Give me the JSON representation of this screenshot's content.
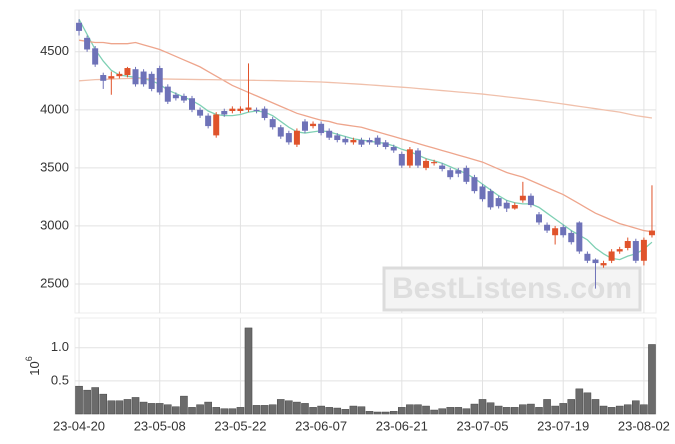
{
  "chart_data": [
    {
      "type": "candlestick",
      "categories": [
        "23-04-20",
        null,
        null,
        null,
        null,
        null,
        null,
        null,
        null,
        null,
        "23-05-08",
        null,
        null,
        null,
        null,
        null,
        null,
        null,
        null,
        null,
        "23-05-22",
        null,
        null,
        null,
        null,
        null,
        null,
        null,
        null,
        null,
        "23-06-07",
        null,
        null,
        null,
        null,
        null,
        null,
        null,
        null,
        null,
        "23-06-21",
        null,
        null,
        null,
        null,
        null,
        null,
        null,
        null,
        null,
        "23-07-05",
        null,
        null,
        null,
        null,
        null,
        null,
        null,
        null,
        null,
        "23-07-19",
        null,
        null,
        null,
        null,
        null,
        null,
        null,
        null,
        null,
        "23-08-02",
        null
      ],
      "open": [
        4750,
        4620,
        4530,
        4300,
        4270,
        4290,
        4300,
        4350,
        4330,
        4310,
        4360,
        4200,
        4130,
        4120,
        4100,
        4000,
        3950,
        3780,
        3990,
        3990,
        3990,
        4000,
        4000,
        4010,
        3920,
        3850,
        3800,
        3700,
        3900,
        3860,
        3880,
        3820,
        3780,
        3750,
        3720,
        3740,
        3740,
        3760,
        3720,
        3680,
        3620,
        3520,
        3650,
        3500,
        3540,
        3520,
        3480,
        3480,
        3500,
        3420,
        3340,
        3300,
        3240,
        3200,
        3150,
        3220,
        3260,
        3100,
        3010,
        2920,
        2990,
        2940,
        3030,
        2760,
        2710,
        2660,
        2700,
        2780,
        2810,
        2870,
        2700,
        2920
      ],
      "high": [
        4780,
        4640,
        4550,
        4320,
        4330,
        4330,
        4370,
        4370,
        4350,
        4330,
        4380,
        4220,
        4150,
        4140,
        4120,
        4020,
        3970,
        3980,
        4010,
        4030,
        4030,
        4400,
        4020,
        4030,
        3940,
        3870,
        3820,
        3840,
        3920,
        3900,
        3900,
        3840,
        3800,
        3770,
        3760,
        3760,
        3760,
        3780,
        3740,
        3700,
        3640,
        3680,
        3670,
        3580,
        3570,
        3540,
        3500,
        3500,
        3520,
        3440,
        3360,
        3320,
        3260,
        3220,
        3200,
        3380,
        3280,
        3120,
        3030,
        3000,
        3010,
        2960,
        3040,
        2780,
        2720,
        2700,
        2800,
        2820,
        2900,
        2890,
        2900,
        3350
      ],
      "low": [
        4640,
        4500,
        4370,
        4180,
        4130,
        4270,
        4280,
        4200,
        4200,
        4160,
        4130,
        4050,
        4080,
        4060,
        3980,
        3930,
        3840,
        3760,
        3940,
        3970,
        3970,
        3980,
        3970,
        3910,
        3830,
        3750,
        3700,
        3680,
        3800,
        3840,
        3780,
        3740,
        3720,
        3700,
        3700,
        3680,
        3700,
        3680,
        3660,
        3630,
        3500,
        3500,
        3500,
        3480,
        3520,
        3470,
        3400,
        3420,
        3360,
        3280,
        3210,
        3140,
        3150,
        3120,
        3140,
        3200,
        3160,
        3010,
        2940,
        2840,
        2900,
        2840,
        2760,
        2680,
        2460,
        2640,
        2680,
        2760,
        2790,
        2680,
        2660,
        2900
      ],
      "close": [
        4680,
        4520,
        4390,
        4250,
        4290,
        4310,
        4360,
        4220,
        4220,
        4180,
        4150,
        4070,
        4100,
        4080,
        4000,
        3950,
        3860,
        3960,
        3960,
        4010,
        4010,
        4020,
        3990,
        3930,
        3850,
        3770,
        3720,
        3820,
        3820,
        3880,
        3800,
        3760,
        3740,
        3720,
        3740,
        3700,
        3720,
        3700,
        3680,
        3650,
        3520,
        3660,
        3520,
        3560,
        3550,
        3490,
        3420,
        3450,
        3380,
        3300,
        3230,
        3160,
        3170,
        3150,
        3180,
        3260,
        3180,
        3030,
        2960,
        2980,
        2920,
        2860,
        2780,
        2700,
        2680,
        2680,
        2780,
        2800,
        2870,
        2700,
        2880,
        2960
      ],
      "up_color": "#e0532b",
      "down_color": "#6e72b8",
      "moving_averages": [
        {
          "color": "#7fd0b4",
          "values": [
            4780,
            4650,
            4520,
            4420,
            4340,
            4300,
            4290,
            4280,
            4270,
            4250,
            4220,
            4170,
            4140,
            4110,
            4080,
            4040,
            3990,
            3960,
            3950,
            3950,
            3960,
            3980,
            3990,
            3980,
            3950,
            3900,
            3850,
            3810,
            3800,
            3810,
            3820,
            3810,
            3790,
            3770,
            3750,
            3740,
            3730,
            3720,
            3710,
            3690,
            3660,
            3640,
            3610,
            3580,
            3560,
            3540,
            3510,
            3480,
            3450,
            3410,
            3360,
            3310,
            3260,
            3220,
            3200,
            3190,
            3190,
            3160,
            3110,
            3060,
            3010,
            2960,
            2920,
            2880,
            2810,
            2760,
            2720,
            2710,
            2740,
            2760,
            2800,
            2860
          ]
        },
        {
          "color": "#eea58c",
          "values": [
            4600,
            4590,
            4580,
            4580,
            4570,
            4570,
            4570,
            4580,
            4560,
            4540,
            4520,
            4490,
            4460,
            4430,
            4400,
            4370,
            4330,
            4290,
            4250,
            4210,
            4180,
            4150,
            4120,
            4090,
            4060,
            4030,
            4000,
            3970,
            3950,
            3930,
            3910,
            3900,
            3880,
            3870,
            3860,
            3850,
            3830,
            3810,
            3790,
            3770,
            3750,
            3730,
            3710,
            3690,
            3670,
            3650,
            3630,
            3610,
            3590,
            3570,
            3550,
            3520,
            3490,
            3460,
            3440,
            3420,
            3390,
            3360,
            3330,
            3300,
            3270,
            3230,
            3190,
            3150,
            3110,
            3080,
            3050,
            3020,
            3000,
            2980,
            2960,
            2950
          ]
        },
        {
          "color": "#f0c0ab",
          "values": [
            4250,
            4255,
            4260,
            4262,
            4265,
            4268,
            4270,
            4270,
            4270,
            4268,
            4266,
            4265,
            4264,
            4263,
            4262,
            4261,
            4260,
            4259,
            4258,
            4257,
            4256,
            4255,
            4254,
            4253,
            4252,
            4250,
            4248,
            4246,
            4244,
            4242,
            4240,
            4236,
            4232,
            4228,
            4224,
            4220,
            4215,
            4210,
            4205,
            4200,
            4195,
            4190,
            4184,
            4178,
            4172,
            4166,
            4160,
            4154,
            4148,
            4142,
            4136,
            4128,
            4120,
            4112,
            4104,
            4096,
            4088,
            4080,
            4070,
            4060,
            4050,
            4040,
            4030,
            4020,
            4010,
            4000,
            3990,
            3980,
            3965,
            3950,
            3940,
            3930
          ]
        }
      ],
      "ylim": [
        2250,
        4860
      ],
      "yticks": [
        2500,
        3000,
        3500,
        4000,
        4500
      ],
      "grid": true,
      "watermark": "BestListens.com"
    },
    {
      "type": "bar",
      "values": [
        0.42,
        0.36,
        0.4,
        0.3,
        0.2,
        0.2,
        0.22,
        0.25,
        0.18,
        0.16,
        0.16,
        0.14,
        0.11,
        0.27,
        0.1,
        0.14,
        0.18,
        0.1,
        0.08,
        0.08,
        0.1,
        1.3,
        0.13,
        0.13,
        0.14,
        0.22,
        0.2,
        0.18,
        0.16,
        0.1,
        0.12,
        0.1,
        0.09,
        0.07,
        0.12,
        0.11,
        0.04,
        0.03,
        0.03,
        0.04,
        0.1,
        0.14,
        0.14,
        0.12,
        0.06,
        0.08,
        0.1,
        0.1,
        0.08,
        0.15,
        0.22,
        0.17,
        0.12,
        0.1,
        0.1,
        0.14,
        0.15,
        0.1,
        0.22,
        0.12,
        0.16,
        0.22,
        0.38,
        0.32,
        0.22,
        0.12,
        0.1,
        0.12,
        0.14,
        0.2,
        0.14,
        1.05
      ],
      "color": "#6b6b6b",
      "ylim": [
        0,
        1.45
      ],
      "yticks": [
        0.5,
        {
          "value": 1,
          "label": "1.0"
        }
      ],
      "grid": true,
      "scale_label": {
        "base": "10",
        "exponent": "6"
      }
    }
  ]
}
